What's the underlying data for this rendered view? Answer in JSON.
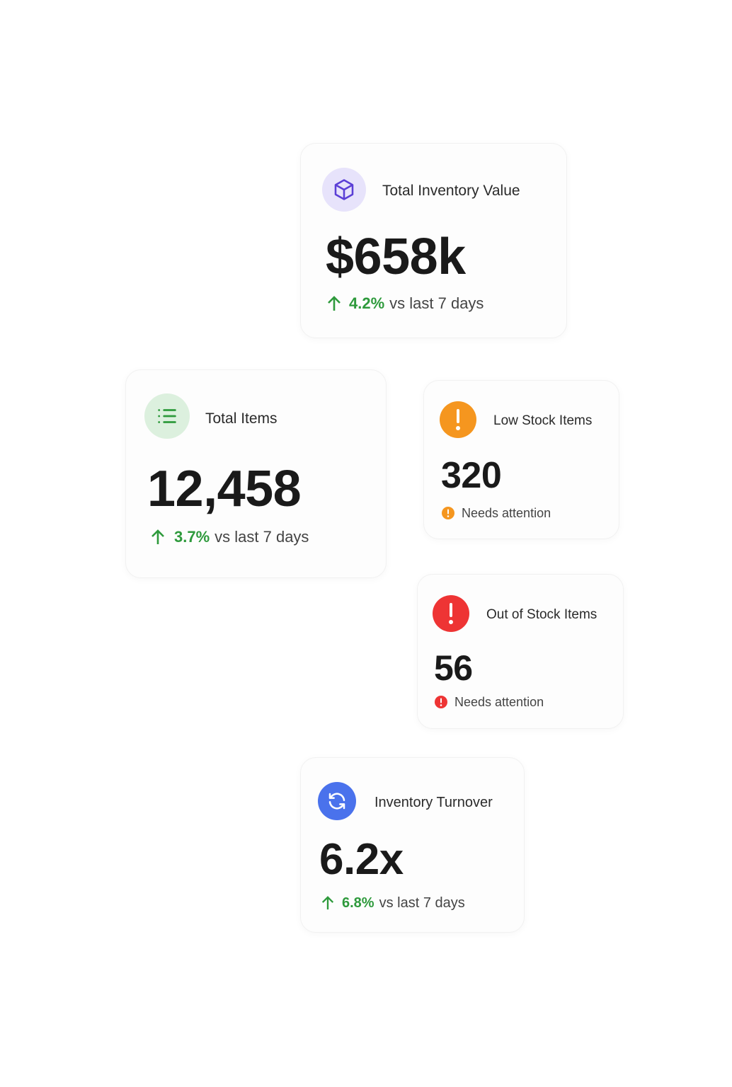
{
  "cards": [
    {
      "label": "Total Inventory Value",
      "value": "$658k",
      "change": "4.2%",
      "change_note": "vs last 7 days"
    },
    {
      "label": "Total Items",
      "value": "12,458",
      "change": "3.7%",
      "change_note": "vs last 7 days"
    },
    {
      "label": "Low Stock Items",
      "value": "320",
      "status": "Needs attention"
    },
    {
      "label": "Out of Stock Items",
      "value": "56",
      "status": "Needs attention"
    },
    {
      "label": "Inventory Turnover",
      "value": "6.2x",
      "change": "6.8%",
      "change_note": "vs last 7 days"
    }
  ]
}
